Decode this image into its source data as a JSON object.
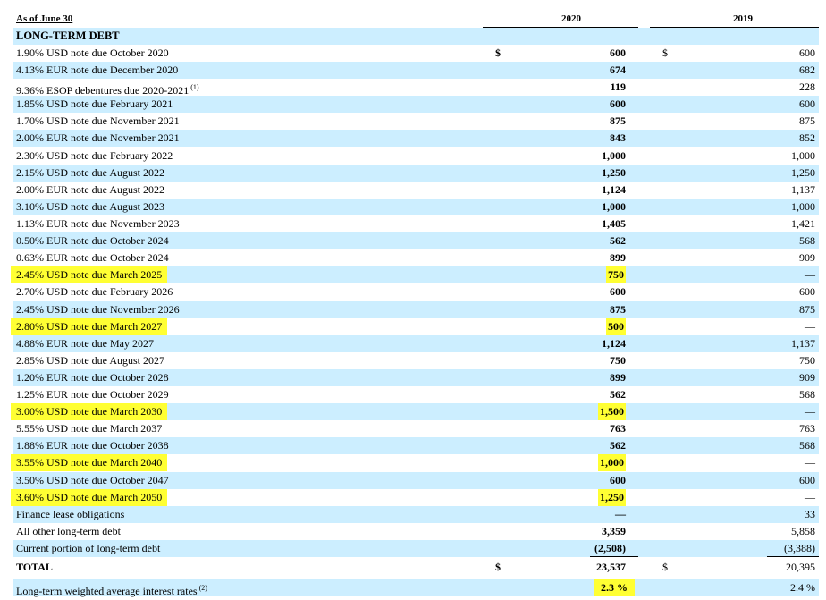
{
  "header": {
    "as_of": "As of June 30",
    "year_2020": "2020",
    "year_2019": "2019"
  },
  "section_title": "LONG-TERM DEBT",
  "currency_symbol": "$",
  "rows": [
    {
      "label": "1.90% USD note due October 2020",
      "v2020": "600",
      "v2019": "600",
      "dollar": true
    },
    {
      "label": "4.13% EUR note due December 2020",
      "v2020": "674",
      "v2019": "682"
    },
    {
      "label": "9.36% ESOP debentures due 2020-2021",
      "footnote": "(1)",
      "v2020": "119",
      "v2019": "228"
    },
    {
      "label": "1.85% USD note due February 2021",
      "v2020": "600",
      "v2019": "600"
    },
    {
      "label": "1.70% USD note due November 2021",
      "v2020": "875",
      "v2019": "875"
    },
    {
      "label": "2.00% EUR note due November 2021",
      "v2020": "843",
      "v2019": "852"
    },
    {
      "label": "2.30% USD note due February 2022",
      "v2020": "1,000",
      "v2019": "1,000"
    },
    {
      "label": "2.15% USD note due August 2022",
      "v2020": "1,250",
      "v2019": "1,250"
    },
    {
      "label": "2.00% EUR note due August 2022",
      "v2020": "1,124",
      "v2019": "1,137"
    },
    {
      "label": "3.10% USD note due August 2023",
      "v2020": "1,000",
      "v2019": "1,000"
    },
    {
      "label": "1.13% EUR note due November 2023",
      "v2020": "1,405",
      "v2019": "1,421"
    },
    {
      "label": "0.50% EUR note due October 2024",
      "v2020": "562",
      "v2019": "568"
    },
    {
      "label": "0.63% EUR note due October 2024",
      "v2020": "899",
      "v2019": "909"
    },
    {
      "label": "2.45% USD note due March 2025",
      "v2020": "750",
      "v2019": "—",
      "highlight": true
    },
    {
      "label": "2.70% USD note due February 2026",
      "v2020": "600",
      "v2019": "600"
    },
    {
      "label": "2.45% USD note due November 2026",
      "v2020": "875",
      "v2019": "875"
    },
    {
      "label": "2.80% USD note due March 2027",
      "v2020": "500",
      "v2019": "—",
      "highlight": true
    },
    {
      "label": "4.88% EUR note due May 2027",
      "v2020": "1,124",
      "v2019": "1,137"
    },
    {
      "label": "2.85% USD note due August 2027",
      "v2020": "750",
      "v2019": "750"
    },
    {
      "label": "1.20% EUR note due October 2028",
      "v2020": "899",
      "v2019": "909"
    },
    {
      "label": "1.25% EUR note due October 2029",
      "v2020": "562",
      "v2019": "568"
    },
    {
      "label": "3.00% USD note due March 2030",
      "v2020": "1,500",
      "v2019": "—",
      "highlight": true
    },
    {
      "label": "5.55% USD note due March 2037",
      "v2020": "763",
      "v2019": "763"
    },
    {
      "label": "1.88% EUR note due October 2038",
      "v2020": "562",
      "v2019": "568"
    },
    {
      "label": "3.55% USD note due March 2040",
      "v2020": "1,000",
      "v2019": "—",
      "highlight": true
    },
    {
      "label": "3.50% USD note due October 2047",
      "v2020": "600",
      "v2019": "600"
    },
    {
      "label": "3.60% USD note due March 2050",
      "v2020": "1,250",
      "v2019": "—",
      "highlight": true
    },
    {
      "label": "Finance lease obligations",
      "v2020": "—",
      "v2019": "33"
    },
    {
      "label": "All other long-term debt",
      "v2020": "3,359",
      "v2019": "5,858"
    },
    {
      "label": "Current portion of long-term debt",
      "v2020": "(2,508)",
      "v2019": "(3,388)"
    },
    {
      "label": "TOTAL",
      "v2020": "23,537",
      "v2019": "20,395",
      "dollar": true,
      "total": true
    }
  ],
  "rate_row": {
    "label": "Long-term weighted average interest rates",
    "footnote": "(2)",
    "v2020": "2.3 %",
    "v2019": "2.4 %"
  },
  "colors": {
    "row_shade": "#cceeff",
    "highlight": "#ffff33"
  }
}
